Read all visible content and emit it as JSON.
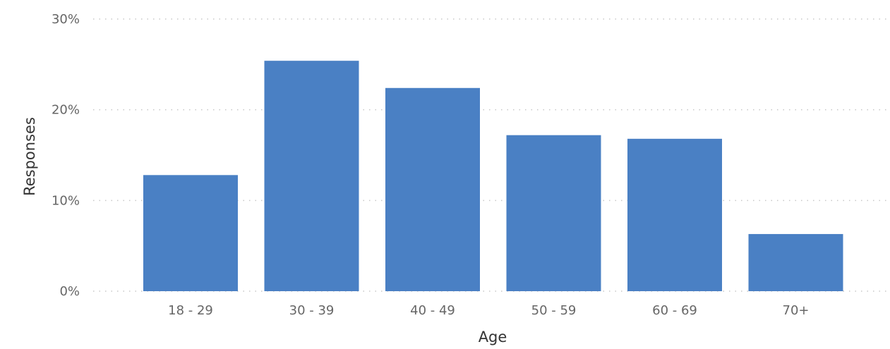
{
  "chart_data": {
    "type": "bar",
    "categories": [
      "18 - 29",
      "30 - 39",
      "40 - 49",
      "50 - 59",
      "60 - 69",
      "70+"
    ],
    "values": [
      12.8,
      25.4,
      22.4,
      17.2,
      16.8,
      6.3
    ],
    "ylim": [
      0,
      30
    ],
    "yticks": [
      0,
      10,
      20,
      30
    ],
    "ytick_labels": [
      "0%",
      "10%",
      "20%",
      "30%"
    ],
    "xlabel": "Age",
    "ylabel": "Responses",
    "grid": true,
    "legend": "none",
    "colors": {
      "bar": "#4a80c4",
      "grid": "#c8c8c8",
      "tick_text": "#666666",
      "axis_title": "#333333"
    }
  }
}
